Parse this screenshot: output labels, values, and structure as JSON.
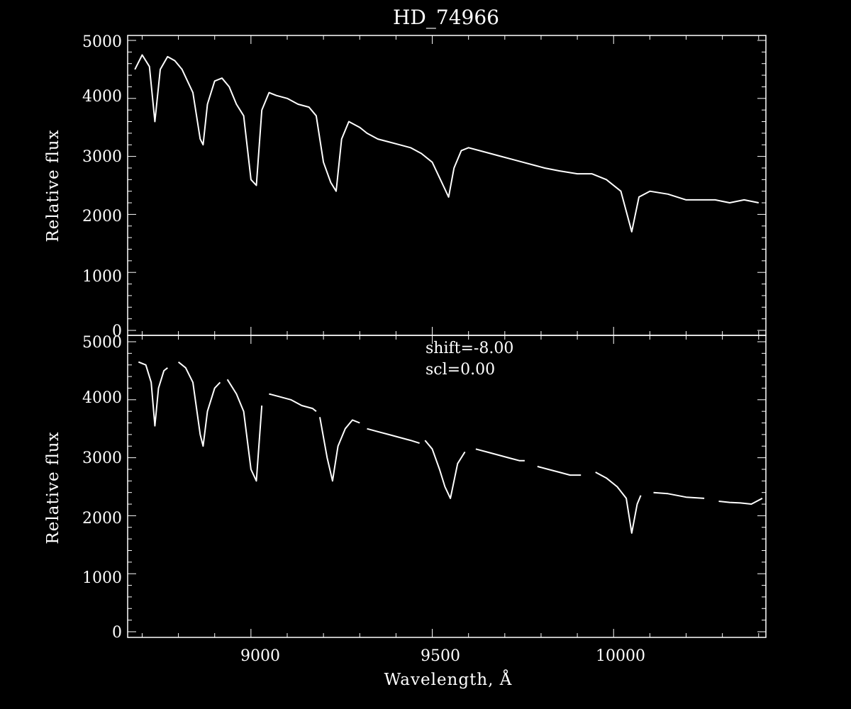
{
  "chart_data": [
    {
      "type": "line",
      "title": "HD_74966",
      "xlabel": "",
      "ylabel": "Relative flux",
      "xlim": [
        8660,
        10420
      ],
      "ylim": [
        0,
        5000
      ],
      "yticks": [
        "0",
        "1000",
        "2000",
        "3000",
        "4000",
        "5000"
      ],
      "xticks": [
        9000,
        9500,
        10000
      ],
      "xtick_labels_visible": false,
      "colors": {
        "background": "#000000",
        "line": "#ffffff"
      },
      "series": [
        {
          "x": [
            8680,
            8700,
            8720,
            8735,
            8750,
            8770,
            8790,
            8810,
            8840,
            8860,
            8868,
            8880,
            8900,
            8920,
            8940,
            8960,
            8980,
            9000,
            9015,
            9030,
            9050,
            9070,
            9100,
            9130,
            9160,
            9180,
            9200,
            9220,
            9235,
            9250,
            9270,
            9300,
            9320,
            9350,
            9380,
            9410,
            9440,
            9470,
            9500,
            9530,
            9545,
            9560,
            9580,
            9600,
            9630,
            9660,
            9690,
            9720,
            9750,
            9780,
            9810,
            9850,
            9900,
            9940,
            9980,
            10020,
            10050,
            10070,
            10100,
            10150,
            10200,
            10250,
            10280,
            10320,
            10360,
            10400
          ],
          "y": [
            4500,
            4750,
            4550,
            3600,
            4500,
            4720,
            4650,
            4500,
            4100,
            3300,
            3200,
            3900,
            4300,
            4350,
            4200,
            3900,
            3700,
            2600,
            2500,
            3800,
            4100,
            4050,
            4000,
            3900,
            3850,
            3700,
            2900,
            2550,
            2400,
            3300,
            3600,
            3500,
            3400,
            3300,
            3250,
            3200,
            3150,
            3050,
            2900,
            2500,
            2300,
            2800,
            3100,
            3150,
            3100,
            3050,
            3000,
            2950,
            2900,
            2850,
            2800,
            2750,
            2700,
            2700,
            2600,
            2400,
            1700,
            2300,
            2400,
            2350,
            2250,
            2250,
            2250,
            2200,
            2250,
            2200
          ]
        }
      ]
    },
    {
      "type": "line",
      "title": "",
      "xlabel": "Wavelength, Å",
      "ylabel": "Relative flux",
      "xlim": [
        8660,
        10420
      ],
      "ylim": [
        0,
        5000
      ],
      "yticks": [
        "0",
        "1000",
        "2000",
        "3000",
        "4000",
        "5000"
      ],
      "xticks": [
        9000,
        9500,
        10000
      ],
      "xtick_labels": [
        "9000",
        "9500",
        "10000"
      ],
      "annotations": [
        "shift=-8.00",
        "scl=0.00"
      ],
      "colors": {
        "background": "#000000",
        "line": "#ffffff"
      },
      "series": [
        {
          "segments": [
            {
              "x": [
                8690,
                8710,
                8725,
                8735,
                8745,
                8760,
                8770
              ],
              "y": [
                4650,
                4600,
                4300,
                3550,
                4200,
                4500,
                4550
              ]
            },
            {
              "x": [
                8800,
                8820,
                8840,
                8860,
                8868,
                8880,
                8900,
                8915
              ],
              "y": [
                4650,
                4550,
                4300,
                3400,
                3200,
                3800,
                4200,
                4300
              ]
            },
            {
              "x": [
                8935,
                8960,
                8980,
                9000,
                9015,
                9030
              ],
              "y": [
                4350,
                4100,
                3800,
                2800,
                2600,
                3900
              ]
            },
            {
              "x": [
                9050,
                9080,
                9110,
                9140,
                9170,
                9180
              ],
              "y": [
                4100,
                4050,
                4000,
                3900,
                3850,
                3800
              ]
            },
            {
              "x": [
                9190,
                9210,
                9225,
                9240,
                9260,
                9280,
                9300
              ],
              "y": [
                3700,
                3000,
                2600,
                3200,
                3500,
                3650,
                3600
              ]
            },
            {
              "x": [
                9320,
                9350,
                9380,
                9410,
                9440,
                9465
              ],
              "y": [
                3500,
                3450,
                3400,
                3350,
                3300,
                3250
              ]
            },
            {
              "x": [
                9480,
                9500,
                9520,
                9535,
                9550,
                9570,
                9590
              ],
              "y": [
                3300,
                3150,
                2800,
                2500,
                2300,
                2900,
                3100
              ]
            },
            {
              "x": [
                9620,
                9650,
                9680,
                9710,
                9740,
                9755
              ],
              "y": [
                3150,
                3100,
                3050,
                3000,
                2950,
                2950
              ]
            },
            {
              "x": [
                9790,
                9820,
                9850,
                9880,
                9910
              ],
              "y": [
                2850,
                2800,
                2750,
                2700,
                2700
              ]
            },
            {
              "x": [
                9950,
                9980,
                10010,
                10035,
                10050,
                10065,
                10075
              ],
              "y": [
                2750,
                2650,
                2500,
                2300,
                1700,
                2200,
                2350
              ]
            },
            {
              "x": [
                10110,
                10150,
                10200,
                10250
              ],
              "y": [
                2400,
                2380,
                2320,
                2300
              ]
            },
            {
              "x": [
                10290,
                10320,
                10350,
                10380,
                10410
              ],
              "y": [
                2250,
                2230,
                2220,
                2200,
                2300
              ]
            }
          ]
        }
      ]
    }
  ],
  "page": {
    "title": "HD_74966",
    "xlabel": "Wavelength, Å",
    "ylabel_top": "Relative flux",
    "ylabel_bottom": "Relative flux",
    "annotation_shift": "shift=-8.00",
    "annotation_scl": "scl=0.00",
    "ytick_labels": [
      "0",
      "1000",
      "2000",
      "3000",
      "4000",
      "5000"
    ],
    "xtick_labels": [
      "9000",
      "9500",
      "10000"
    ]
  }
}
